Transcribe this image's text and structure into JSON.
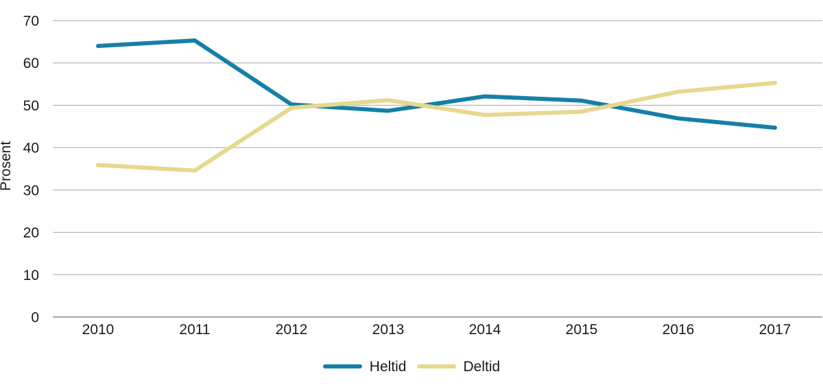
{
  "chart_data": {
    "type": "line",
    "title": "",
    "ylabel": "Prosent",
    "xlabel": "",
    "ylim": [
      0,
      70
    ],
    "yticks": [
      0,
      10,
      20,
      30,
      40,
      50,
      60,
      70
    ],
    "grid": "horizontal",
    "legend_position": "bottom-center",
    "categories": [
      "2010",
      "2011",
      "2012",
      "2013",
      "2014",
      "2015",
      "2016",
      "2017"
    ],
    "series": [
      {
        "name": "Heltid",
        "color": "#1580a6",
        "values": [
          64.0,
          65.3,
          50.2,
          48.7,
          52.1,
          51.1,
          46.9,
          44.7
        ]
      },
      {
        "name": "Deltid",
        "color": "#e6d88e",
        "values": [
          35.9,
          34.6,
          49.4,
          51.2,
          47.7,
          48.5,
          53.2,
          55.3
        ]
      }
    ]
  }
}
